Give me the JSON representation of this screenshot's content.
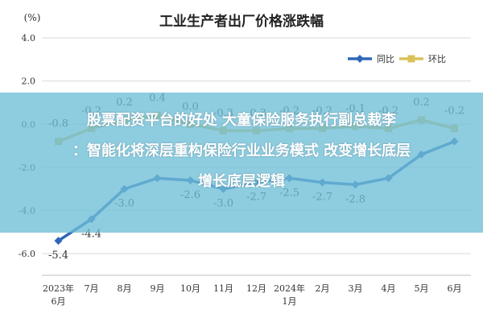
{
  "chart_data": {
    "type": "line",
    "title": "工业生产者出厂价格涨跌幅",
    "ylabel": "(%)",
    "ylim": [
      -7,
      4
    ],
    "yticks": [
      "4.0",
      "2.0",
      "0.0",
      "-2.0",
      "-4.0",
      "-6.0"
    ],
    "ytick_values": [
      4,
      2,
      0,
      -2,
      -4,
      -6
    ],
    "grid": true,
    "legend_position": "top-right",
    "categories": [
      [
        "2023年",
        "6月"
      ],
      [
        "7月"
      ],
      [
        "8月"
      ],
      [
        "9月"
      ],
      [
        "10月"
      ],
      [
        "11月"
      ],
      [
        "12月"
      ],
      [
        "2024年",
        "1月"
      ],
      [
        "2月"
      ],
      [
        "3月"
      ],
      [
        "4月"
      ],
      [
        "5月"
      ],
      [
        "6月"
      ]
    ],
    "series": [
      {
        "name": "同比",
        "color": "#2e66b8",
        "values": [
          -5.4,
          -4.4,
          -3.0,
          -2.5,
          -2.6,
          -3.0,
          -2.7,
          -2.5,
          -2.7,
          -2.8,
          -2.5,
          -1.4,
          -0.8
        ],
        "labels": [
          "-5.4",
          "-4.4",
          "-3.0",
          "",
          "-2.6",
          "-3.0",
          "-2.7",
          "-2.5",
          "-2.7",
          "-2.8",
          "",
          "",
          ""
        ]
      },
      {
        "name": "环比",
        "color": "#d8c35a",
        "values": [
          -0.8,
          -0.2,
          0.2,
          0.4,
          0.0,
          -0.3,
          -0.3,
          -0.2,
          -0.2,
          -0.1,
          -0.2,
          0.2,
          -0.2
        ],
        "labels": [
          "-0.8",
          "-0.2",
          "0.2",
          "0.4",
          "0.0",
          "-0.3",
          "-0.3",
          "-0.2",
          "-0.2",
          "-0.1",
          "-0.2",
          "0.2",
          "-0.2"
        ]
      }
    ]
  },
  "banner": {
    "lines": [
      "股票配资平台的好处 大童保险服务执行副总裁李",
      "：智能化将深层重构保险行业业务模式 改变增长底层",
      "增长底层逻辑"
    ]
  }
}
